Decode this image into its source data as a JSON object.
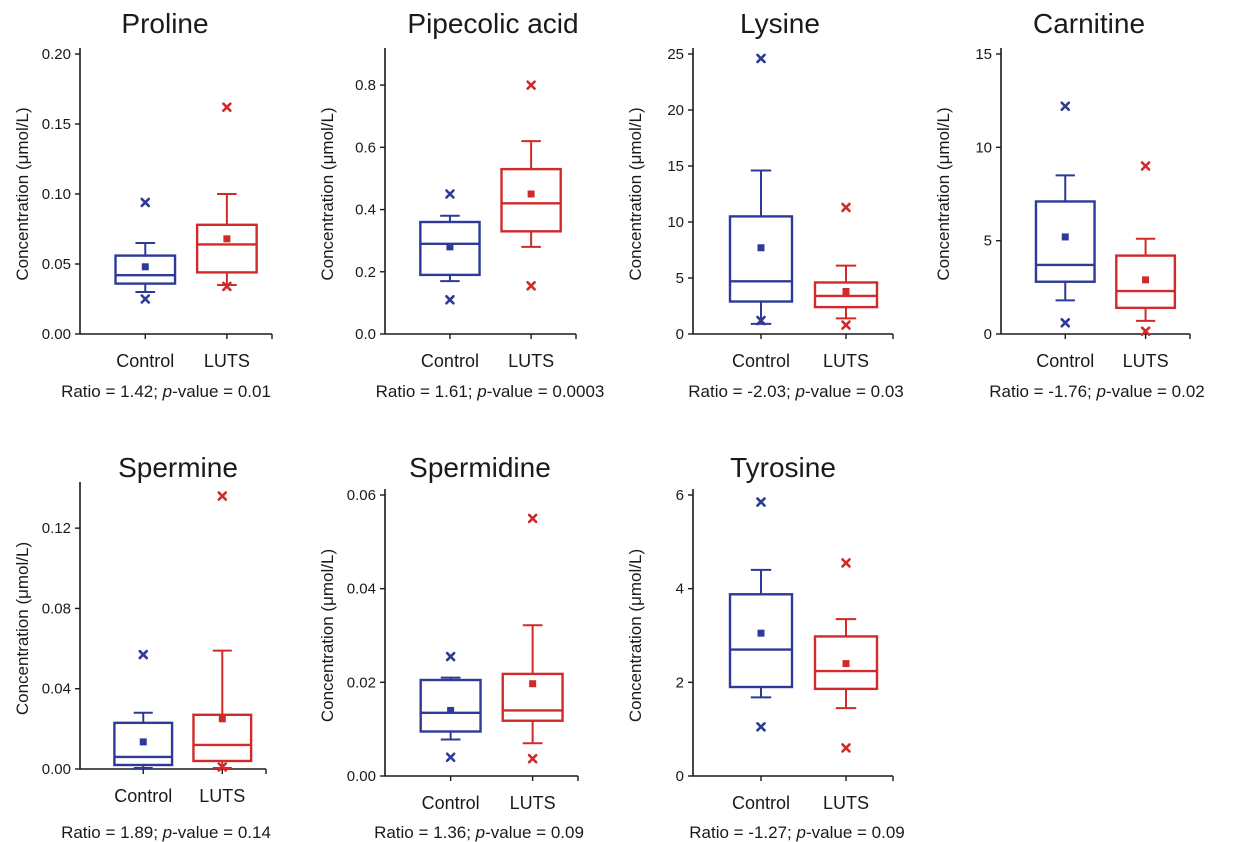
{
  "chart_data": [
    {
      "type": "box",
      "title": "Proline",
      "ylabel": "Concentration (μmol/L)",
      "ylim": [
        0,
        0.2
      ],
      "yticks": [
        "0.00",
        "0.05",
        "0.10",
        "0.15",
        "0.20"
      ],
      "categories": [
        "Control",
        "LUTS"
      ],
      "groups": [
        {
          "name": "Control",
          "color": "#2e3a98",
          "q1": 0.036,
          "median": 0.042,
          "q3": 0.056,
          "whisker_low": 0.03,
          "whisker_high": 0.065,
          "mean": 0.048,
          "outliers": [
            0.094,
            0.025
          ]
        },
        {
          "name": "LUTS",
          "color": "#d12a2a",
          "q1": 0.044,
          "median": 0.064,
          "q3": 0.078,
          "whisker_low": 0.035,
          "whisker_high": 0.1,
          "mean": 0.068,
          "outliers": [
            0.162,
            0.034
          ]
        }
      ],
      "caption": {
        "prefix": "Ratio = 1.42; ",
        "p": "p",
        "suffix": "-value = 0.01"
      }
    },
    {
      "type": "box",
      "title": "Pipecolic acid",
      "ylabel": "Concentration (μmol/L)",
      "ylim": [
        0,
        0.9
      ],
      "yticks": [
        "0.0",
        "0.2",
        "0.4",
        "0.6",
        "0.8"
      ],
      "categories": [
        "Control",
        "LUTS"
      ],
      "groups": [
        {
          "name": "Control",
          "color": "#2e3a98",
          "q1": 0.19,
          "median": 0.29,
          "q3": 0.36,
          "whisker_low": 0.17,
          "whisker_high": 0.38,
          "mean": 0.28,
          "outliers": [
            0.45,
            0.11
          ]
        },
        {
          "name": "LUTS",
          "color": "#d12a2a",
          "q1": 0.33,
          "median": 0.42,
          "q3": 0.53,
          "whisker_low": 0.28,
          "whisker_high": 0.62,
          "mean": 0.45,
          "outliers": [
            0.8,
            0.155
          ]
        }
      ],
      "caption": {
        "prefix": "Ratio = 1.61; ",
        "p": "p",
        "suffix": "-value = 0.0003"
      }
    },
    {
      "type": "box",
      "title": "Lysine",
      "ylabel": "Concentration (μmol/L)",
      "ylim": [
        0,
        25
      ],
      "yticks": [
        "0",
        "5",
        "10",
        "15",
        "20",
        "25"
      ],
      "categories": [
        "Control",
        "LUTS"
      ],
      "groups": [
        {
          "name": "Control",
          "color": "#2e3a98",
          "q1": 2.9,
          "median": 4.7,
          "q3": 10.5,
          "whisker_low": 0.9,
          "whisker_high": 14.6,
          "mean": 7.7,
          "outliers": [
            24.6,
            1.2
          ]
        },
        {
          "name": "LUTS",
          "color": "#d12a2a",
          "q1": 2.4,
          "median": 3.4,
          "q3": 4.6,
          "whisker_low": 1.4,
          "whisker_high": 6.1,
          "mean": 3.8,
          "outliers": [
            11.3,
            0.8
          ]
        }
      ],
      "caption": {
        "prefix": "Ratio = -2.03; ",
        "p": "p",
        "suffix": "-value = 0.03"
      }
    },
    {
      "type": "box",
      "title": "Carnitine",
      "ylabel": "Concentration (μmol/L)",
      "ylim": [
        0,
        15
      ],
      "yticks": [
        "0",
        "5",
        "10",
        "15"
      ],
      "categories": [
        "Control",
        "LUTS"
      ],
      "groups": [
        {
          "name": "Control",
          "color": "#2e3a98",
          "q1": 2.8,
          "median": 3.7,
          "q3": 7.1,
          "whisker_low": 1.8,
          "whisker_high": 8.5,
          "mean": 5.2,
          "outliers": [
            12.2,
            0.6
          ]
        },
        {
          "name": "LUTS",
          "color": "#d12a2a",
          "q1": 1.4,
          "median": 2.3,
          "q3": 4.2,
          "whisker_low": 0.7,
          "whisker_high": 5.1,
          "mean": 2.9,
          "outliers": [
            9.0,
            0.15
          ]
        }
      ],
      "caption": {
        "prefix": "Ratio = -1.76; ",
        "p": "p",
        "suffix": "-value = 0.02"
      }
    },
    {
      "type": "box",
      "title": "Spermine",
      "ylabel": "Concentration (μmol/L)",
      "ylim": [
        0,
        0.14
      ],
      "yticks": [
        "0.00",
        "0.04",
        "0.08",
        "0.12"
      ],
      "categories": [
        "Control",
        "LUTS"
      ],
      "groups": [
        {
          "name": "Control",
          "color": "#2e3a98",
          "q1": 0.002,
          "median": 0.006,
          "q3": 0.023,
          "whisker_low": 0.0005,
          "whisker_high": 0.028,
          "mean": 0.0135,
          "outliers": [
            0.057
          ]
        },
        {
          "name": "LUTS",
          "color": "#d12a2a",
          "q1": 0.004,
          "median": 0.012,
          "q3": 0.027,
          "whisker_low": 0.0005,
          "whisker_high": 0.059,
          "mean": 0.025,
          "outliers": [
            0.136,
            0.001
          ]
        }
      ],
      "caption": {
        "prefix": "Ratio = 1.89; ",
        "p": "p",
        "suffix": "-value = 0.14"
      }
    },
    {
      "type": "box",
      "title": "Spermidine",
      "ylabel": "Concentration (μmol/L)",
      "ylim": [
        0,
        0.06
      ],
      "yticks": [
        "0.00",
        "0.02",
        "0.04",
        "0.06"
      ],
      "categories": [
        "Control",
        "LUTS"
      ],
      "groups": [
        {
          "name": "Control",
          "color": "#2e3a98",
          "q1": 0.0095,
          "median": 0.0135,
          "q3": 0.0205,
          "whisker_low": 0.0078,
          "whisker_high": 0.021,
          "mean": 0.014,
          "outliers": [
            0.0255,
            0.004
          ]
        },
        {
          "name": "LUTS",
          "color": "#d12a2a",
          "q1": 0.0118,
          "median": 0.014,
          "q3": 0.0218,
          "whisker_low": 0.007,
          "whisker_high": 0.0322,
          "mean": 0.0197,
          "outliers": [
            0.055,
            0.0037
          ]
        }
      ],
      "caption": {
        "prefix": "Ratio = 1.36; ",
        "p": "p",
        "suffix": "-value = 0.09"
      }
    },
    {
      "type": "box",
      "title": "Tyrosine",
      "ylabel": "Concentration (μmol/L)",
      "ylim": [
        0,
        6
      ],
      "yticks": [
        "0",
        "2",
        "4",
        "6"
      ],
      "categories": [
        "Control",
        "LUTS"
      ],
      "groups": [
        {
          "name": "Control",
          "color": "#2e3a98",
          "q1": 1.9,
          "median": 2.7,
          "q3": 3.88,
          "whisker_low": 1.68,
          "whisker_high": 4.4,
          "mean": 3.05,
          "outliers": [
            5.85,
            1.05
          ]
        },
        {
          "name": "LUTS",
          "color": "#d12a2a",
          "q1": 1.86,
          "median": 2.24,
          "q3": 2.98,
          "whisker_low": 1.45,
          "whisker_high": 3.35,
          "mean": 2.4,
          "outliers": [
            4.55,
            0.6
          ]
        }
      ],
      "caption": {
        "prefix": "Ratio = -1.27; ",
        "p": "p",
        "suffix": "-value = 0.09"
      }
    }
  ]
}
